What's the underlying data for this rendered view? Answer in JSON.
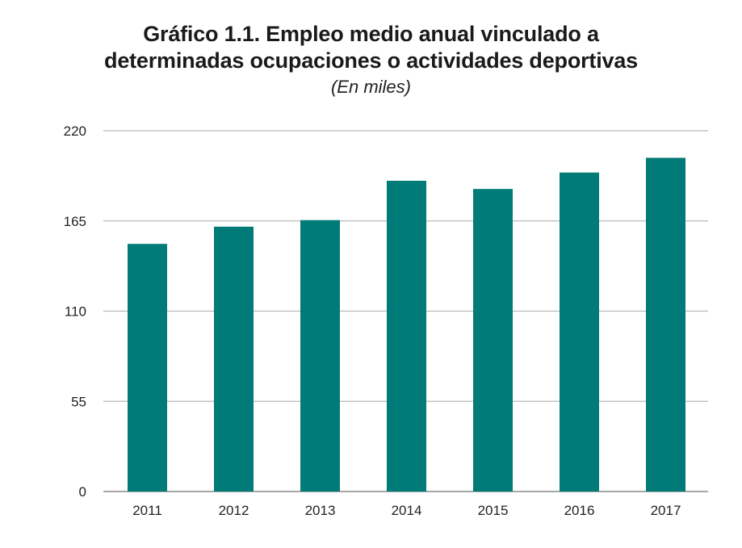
{
  "chart_data": {
    "type": "bar",
    "title_lines": [
      "Gráfico 1.1. Empleo medio anual vinculado a",
      "determinadas ocupaciones o actividades deportivas"
    ],
    "subtitle": "(En miles)",
    "categories": [
      "2011",
      "2012",
      "2013",
      "2014",
      "2015",
      "2016",
      "2017"
    ],
    "values": [
      151.0,
      161.5,
      165.5,
      189.5,
      184.5,
      194.5,
      203.5
    ],
    "ylim": [
      0,
      220
    ],
    "yticks": [
      0,
      55,
      110,
      165,
      220
    ],
    "ytick_labels": [
      "0",
      "55",
      "110",
      "165",
      "220"
    ],
    "grid": true,
    "legend": "none",
    "colors": {
      "bar": "#007b78",
      "grid": "#b8b8b8",
      "axis": "#8a8a8a"
    }
  }
}
